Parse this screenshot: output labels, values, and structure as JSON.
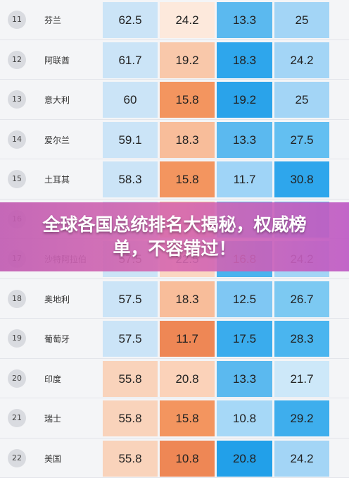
{
  "banner": {
    "title": "全球各国总统排名大揭秘，权威榜单，不容错过！"
  },
  "colors": {
    "v_light_blue": "#cbe4f7",
    "v_mid_blue": "#a9d3f3",
    "peach_light": "#fde4d5",
    "peach": "#f9c3a4",
    "orange": "#f39a6a",
    "orange_dark": "#ee8755",
    "blue_pale": "#9fd4f7",
    "blue": "#63bff1",
    "blue_strong": "#2ea6ec",
    "blue_light": "#bfe3f8"
  },
  "rows": [
    {
      "rank": "11",
      "country": "芬兰",
      "values": [
        "62.5",
        "24.2",
        "13.3",
        "25"
      ],
      "fills": [
        "#cbe4f7",
        "#fde9dc",
        "#5bb9ef",
        "#a3d5f6"
      ]
    },
    {
      "rank": "12",
      "country": "阿联酋",
      "values": [
        "61.7",
        "19.2",
        "18.3",
        "24.2"
      ],
      "fills": [
        "#cbe4f7",
        "#f9c8aa",
        "#2ea6ec",
        "#a3d5f6"
      ]
    },
    {
      "rank": "13",
      "country": "意大利",
      "values": [
        "60",
        "15.8",
        "19.2",
        "25"
      ],
      "fills": [
        "#cbe4f7",
        "#f3955f",
        "#2aa3ea",
        "#a3d5f6"
      ]
    },
    {
      "rank": "14",
      "country": "爱尔兰",
      "values": [
        "59.1",
        "18.3",
        "13.3",
        "27.5"
      ],
      "fills": [
        "#cbe4f7",
        "#f8bd9a",
        "#5bb9ef",
        "#63bff1"
      ]
    },
    {
      "rank": "15",
      "country": "土耳其",
      "values": [
        "58.3",
        "15.8",
        "11.7",
        "30.8"
      ],
      "fills": [
        "#cbe4f7",
        "#f3955f",
        "#9fd4f7",
        "#2ea6ec"
      ]
    },
    {
      "rank": "16",
      "country": "",
      "values": [
        "",
        "",
        "",
        ""
      ],
      "fills": [
        "#cbe4f7",
        "#f8bd9a",
        "#5bb9ef",
        "#63bff1"
      ]
    },
    {
      "rank": "17",
      "country": "沙特阿拉伯",
      "values": [
        "57.5",
        "22.5",
        "16.8",
        "24.2"
      ],
      "fills": [
        "#cbe4f7",
        "#fbd7c2",
        "#4ab3ee",
        "#a3d5f6"
      ]
    },
    {
      "rank": "18",
      "country": "奥地利",
      "values": [
        "57.5",
        "18.3",
        "12.5",
        "26.7"
      ],
      "fills": [
        "#cbe4f7",
        "#f8bd9a",
        "#7fc7f3",
        "#7cc9f2"
      ]
    },
    {
      "rank": "19",
      "country": "葡萄牙",
      "values": [
        "57.5",
        "11.7",
        "17.5",
        "28.3"
      ],
      "fills": [
        "#cbe4f7",
        "#ee8755",
        "#3aaced",
        "#4ab5ef"
      ]
    },
    {
      "rank": "20",
      "country": "印度",
      "values": [
        "55.8",
        "20.8",
        "13.3",
        "21.7"
      ],
      "fills": [
        "#f9d3bb",
        "#fbd2b9",
        "#5bb9ef",
        "#cde8f9"
      ]
    },
    {
      "rank": "21",
      "country": "瑞士",
      "values": [
        "55.8",
        "15.8",
        "10.8",
        "29.2"
      ],
      "fills": [
        "#f9d3bb",
        "#f3955f",
        "#a6d8f7",
        "#3eaeed"
      ]
    },
    {
      "rank": "22",
      "country": "美国",
      "values": [
        "55.8",
        "10.8",
        "20.8",
        "24.2"
      ],
      "fills": [
        "#f9d3bb",
        "#ee8755",
        "#22a0e9",
        "#a3d5f6"
      ]
    }
  ]
}
